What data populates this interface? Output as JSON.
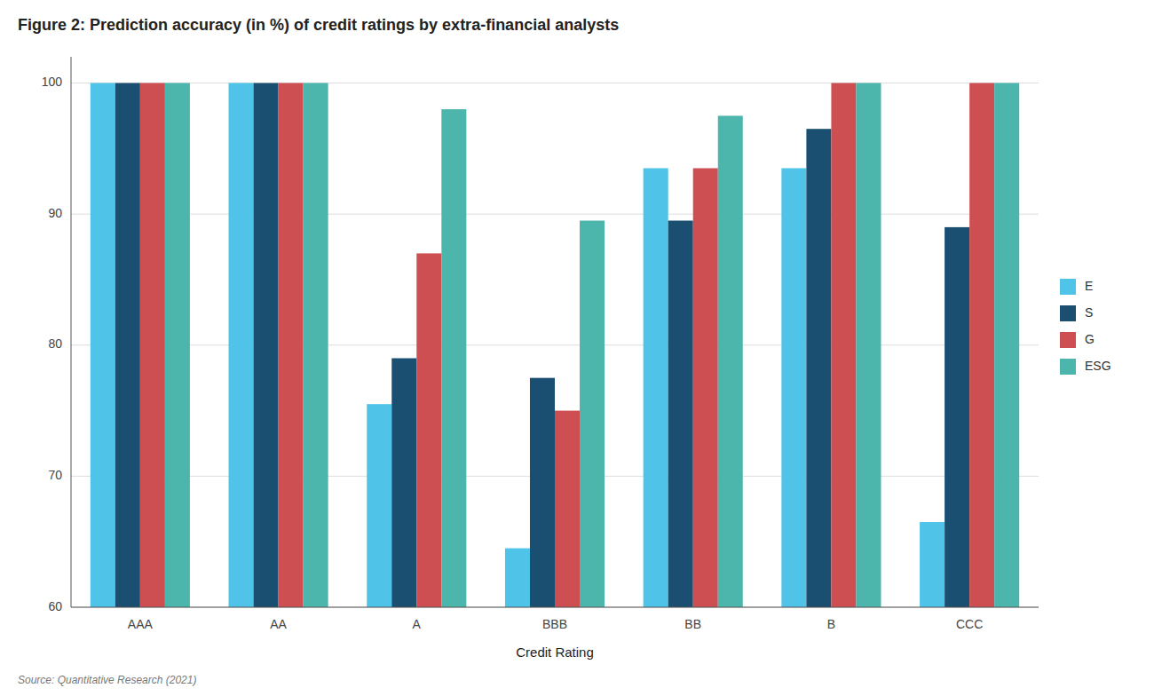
{
  "chart_data": {
    "type": "bar",
    "title": "Figure 2: Prediction accuracy (in %) of credit ratings by extra-financial analysts",
    "x_label": "Credit Rating",
    "source": "Source: Quantitative Research (2021)",
    "categories": [
      "AAA",
      "AA",
      "A",
      "BBB",
      "BB",
      "B",
      "CCC"
    ],
    "series": [
      {
        "name": "E",
        "color": "#4fc3e8",
        "values": [
          100,
          100,
          75.5,
          64.5,
          93.5,
          93.5,
          66.5
        ]
      },
      {
        "name": "S",
        "color": "#1b4f72",
        "values": [
          100,
          100,
          79,
          77.5,
          89.5,
          96.5,
          89
        ]
      },
      {
        "name": "G",
        "color": "#cd4f52",
        "values": [
          100,
          100,
          87,
          75,
          93.5,
          100,
          100
        ]
      },
      {
        "name": "ESG",
        "color": "#4db6ac",
        "values": [
          100,
          100,
          98,
          89.5,
          97.5,
          100,
          100
        ]
      }
    ],
    "ylim": [
      60,
      102
    ],
    "yticks": [
      60,
      70,
      80,
      90,
      100
    ],
    "grid": true,
    "legend": "right"
  }
}
